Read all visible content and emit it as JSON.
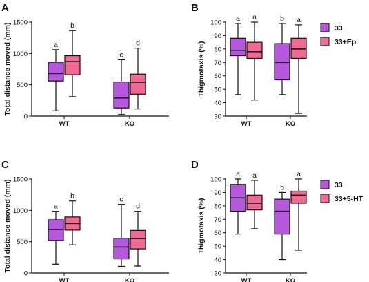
{
  "colors": {
    "series1": "#b757e0",
    "series2": "#f06a93"
  },
  "chart_data": [
    {
      "panel": "A",
      "type": "box",
      "ylabel": "Total distance moved (mm)",
      "ylim": [
        0,
        1500
      ],
      "yticks": [
        0,
        500,
        1000,
        1500
      ],
      "categories": [
        "WT",
        "KO"
      ],
      "series": [
        {
          "boxes": [
            {
              "min": 85,
              "q1": 560,
              "median": 680,
              "q3": 860,
              "max": 1060
            },
            {
              "min": 25,
              "q1": 130,
              "median": 290,
              "q3": 545,
              "max": 900
            }
          ]
        },
        {
          "boxes": [
            {
              "min": 310,
              "q1": 660,
              "median": 870,
              "q3": 965,
              "max": 1365
            },
            {
              "min": 115,
              "q1": 350,
              "median": 540,
              "q3": 670,
              "max": 1085
            }
          ]
        }
      ],
      "letters": [
        [
          "a",
          "c"
        ],
        [
          "b",
          "d"
        ]
      ]
    },
    {
      "panel": "B",
      "type": "box",
      "ylabel": "Thigmotaxis (%)",
      "ylim": [
        30,
        100
      ],
      "yticks": [
        30,
        40,
        50,
        60,
        70,
        80,
        90,
        100
      ],
      "categories": [
        "WT",
        "KO"
      ],
      "legend": [
        "33",
        "33+Ep"
      ],
      "series": [
        {
          "boxes": [
            {
              "min": 46,
              "q1": 75,
              "median": 79,
              "q3": 88,
              "max": 99
            },
            {
              "min": 46,
              "q1": 57,
              "median": 70,
              "q3": 84,
              "max": 99
            }
          ]
        },
        {
          "boxes": [
            {
              "min": 42,
              "q1": 73,
              "median": 78,
              "q3": 85,
              "max": 100
            },
            {
              "min": 32,
              "q1": 73,
              "median": 80,
              "q3": 88,
              "max": 98
            }
          ]
        }
      ],
      "letters": [
        [
          "a",
          "b"
        ],
        [
          "a",
          "a"
        ]
      ]
    },
    {
      "panel": "C",
      "type": "box",
      "ylabel": "Total distance moved (mm)",
      "ylim": [
        0,
        1500
      ],
      "yticks": [
        0,
        500,
        1000,
        1500
      ],
      "categories": [
        "WT",
        "KO"
      ],
      "series": [
        {
          "boxes": [
            {
              "min": 140,
              "q1": 520,
              "median": 695,
              "q3": 850,
              "max": 985
            },
            {
              "min": 105,
              "q1": 225,
              "median": 415,
              "q3": 555,
              "max": 1095
            }
          ]
        },
        {
          "boxes": [
            {
              "min": 450,
              "q1": 685,
              "median": 790,
              "q3": 895,
              "max": 1150
            },
            {
              "min": 110,
              "q1": 385,
              "median": 550,
              "q3": 680,
              "max": 985
            }
          ]
        }
      ],
      "letters": [
        [
          "a",
          "c"
        ],
        [
          "b",
          "d"
        ]
      ]
    },
    {
      "panel": "D",
      "type": "box",
      "ylabel": "Thigmotaxis (%)",
      "ylim": [
        30,
        100
      ],
      "yticks": [
        30,
        40,
        50,
        60,
        70,
        80,
        90,
        100
      ],
      "categories": [
        "WT",
        "KO"
      ],
      "legend": [
        "33",
        "33+5-HT"
      ],
      "series": [
        {
          "boxes": [
            {
              "min": 59,
              "q1": 76,
              "median": 86,
              "q3": 96,
              "max": 100
            },
            {
              "min": 40,
              "q1": 59,
              "median": 76,
              "q3": 85,
              "max": 90
            }
          ]
        },
        {
          "boxes": [
            {
              "min": 63,
              "q1": 77,
              "median": 82,
              "q3": 88,
              "max": 99
            },
            {
              "min": 47,
              "q1": 82,
              "median": 88,
              "q3": 91,
              "max": 100
            }
          ]
        }
      ],
      "letters": [
        [
          "a",
          "b"
        ],
        [
          "a",
          "a"
        ]
      ]
    }
  ]
}
